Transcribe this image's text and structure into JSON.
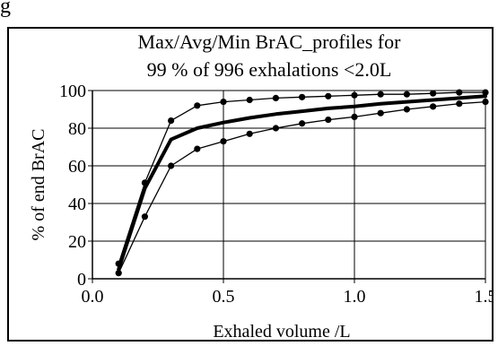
{
  "figure": {
    "panel_letter": "g"
  },
  "chart_data": {
    "type": "line",
    "title": [
      "Max/Avg/Min BrAC_profiles for",
      "99 % of 996 exhalations <2.0L"
    ],
    "xlabel": "Exhaled volume /L",
    "ylabel": "% of end BrAC",
    "xlim": [
      0.0,
      1.5
    ],
    "ylim": [
      0,
      100
    ],
    "xticks": [
      0.0,
      0.5,
      1.0,
      1.5
    ],
    "xtick_labels": [
      "0.0",
      "0.5",
      "1.0",
      "1.5"
    ],
    "yticks": [
      0,
      20,
      40,
      60,
      80,
      100
    ],
    "ytick_labels": [
      "0",
      "20",
      "40",
      "60",
      "80",
      "100"
    ],
    "grid": true,
    "legend": "none",
    "colors": {
      "series": "#000000",
      "grid": "#000000",
      "plot_background": "#ffffff"
    },
    "series": [
      {
        "style": "thin-with-markers",
        "x": [
          0.1,
          0.2,
          0.3,
          0.4,
          0.5,
          0.6,
          0.7,
          0.8,
          0.9,
          1.0,
          1.1,
          1.2,
          1.3,
          1.4,
          1.5
        ],
        "y": [
          8,
          51,
          84,
          92,
          94,
          95,
          96,
          96.5,
          97,
          97.5,
          98,
          98,
          98.5,
          99,
          99
        ]
      },
      {
        "style": "thick",
        "x": [
          0.1,
          0.2,
          0.3,
          0.4,
          0.5,
          0.6,
          0.7,
          0.8,
          0.9,
          1.0,
          1.1,
          1.2,
          1.3,
          1.4,
          1.5
        ],
        "y": [
          5,
          48,
          74,
          80,
          83,
          85.5,
          87.5,
          89,
          90.5,
          91.5,
          93,
          94,
          95,
          96,
          97
        ]
      },
      {
        "style": "thin-with-markers",
        "x": [
          0.1,
          0.2,
          0.3,
          0.4,
          0.5,
          0.6,
          0.7,
          0.8,
          0.9,
          1.0,
          1.1,
          1.2,
          1.3,
          1.4,
          1.5
        ],
        "y": [
          3,
          33,
          60,
          69,
          73,
          77,
          80,
          82.5,
          84.5,
          86,
          88,
          90,
          91.5,
          93,
          94
        ]
      }
    ]
  }
}
